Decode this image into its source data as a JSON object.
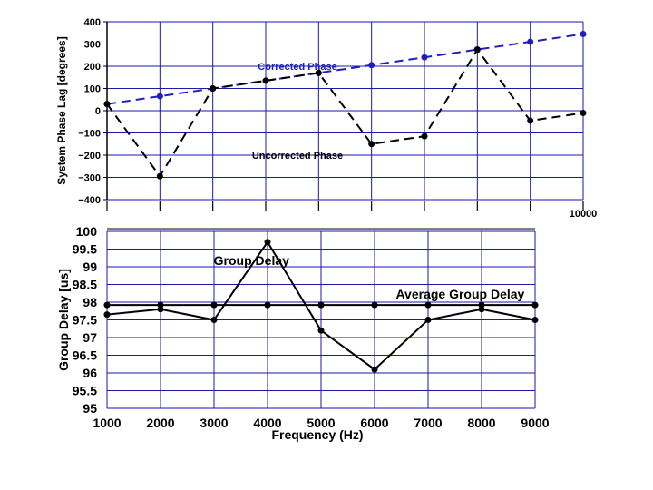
{
  "chart_data": [
    {
      "type": "line",
      "title": "",
      "xlabel": "",
      "ylabel": "System Phase Lag [degrees]",
      "ylim": [
        -400,
        400
      ],
      "yticks": [
        400,
        300,
        200,
        100,
        0,
        -100,
        -200,
        -300,
        -400
      ],
      "ytick_labels": [
        "400",
        "300",
        "200",
        "100",
        "0",
        "−100",
        "−200",
        "−300",
        "−400"
      ],
      "xlim": [
        1000,
        10000
      ],
      "xtick_labels": [
        {
          "x": 10000,
          "label": "10000"
        }
      ],
      "x": [
        1000,
        2000,
        3000,
        4000,
        5000,
        6000,
        7000,
        8000,
        9000,
        10000
      ],
      "series": [
        {
          "name": "Corrected Phase",
          "color": "#1f1fbf",
          "dash": "dashed",
          "values": [
            30,
            65,
            100,
            135,
            170,
            205,
            240,
            275,
            310,
            345
          ]
        },
        {
          "name": "Uncorrected Phase",
          "color": "#000000",
          "dash": "dashed",
          "values": [
            30,
            -295,
            100,
            135,
            170,
            -150,
            -115,
            275,
            -45,
            -10
          ]
        }
      ],
      "annotations": [
        {
          "text": "Corrected Phase",
          "x": 4600,
          "y": 200,
          "color": "#1f1fbf"
        },
        {
          "text": "Uncorrected Phase",
          "x": 4600,
          "y": -200,
          "color": "#000000"
        }
      ],
      "grid": true
    },
    {
      "type": "line",
      "title": "",
      "xlabel": "Frequency (Hz)",
      "ylabel": "Group Delay [us]",
      "ylim": [
        95,
        100
      ],
      "yticks": [
        100,
        99.5,
        99,
        98.5,
        98,
        97.5,
        97,
        96.5,
        96,
        95.5,
        95
      ],
      "ytick_labels": [
        "100",
        "99.5",
        "99",
        "98.5",
        "98",
        "97.5",
        "97",
        "96.5",
        "96",
        "95.5",
        "95"
      ],
      "xlim": [
        1000,
        9000
      ],
      "x": [
        1000,
        2000,
        3000,
        4000,
        5000,
        6000,
        7000,
        8000,
        9000
      ],
      "xtick_labels": [
        "1000",
        "2000",
        "3000",
        "4000",
        "5000",
        "6000",
        "7000",
        "8000",
        "9000"
      ],
      "series": [
        {
          "name": "Group Delay",
          "color": "#000000",
          "dash": "solid",
          "values": [
            97.65,
            97.8,
            97.5,
            99.7,
            97.2,
            96.1,
            97.5,
            97.8,
            97.5
          ]
        },
        {
          "name": "Average Group Delay",
          "color": "#000000",
          "dash": "solid",
          "values": [
            97.92,
            97.92,
            97.92,
            97.92,
            97.92,
            97.92,
            97.92,
            97.92,
            97.92
          ]
        }
      ],
      "annotations": [
        {
          "text": "Group Delay",
          "x": 3700,
          "y": 99.05,
          "color": "#000000"
        },
        {
          "text": "Average Group Delay",
          "x": 7600,
          "y": 98.1,
          "color": "#000000"
        }
      ],
      "grid": true
    }
  ]
}
